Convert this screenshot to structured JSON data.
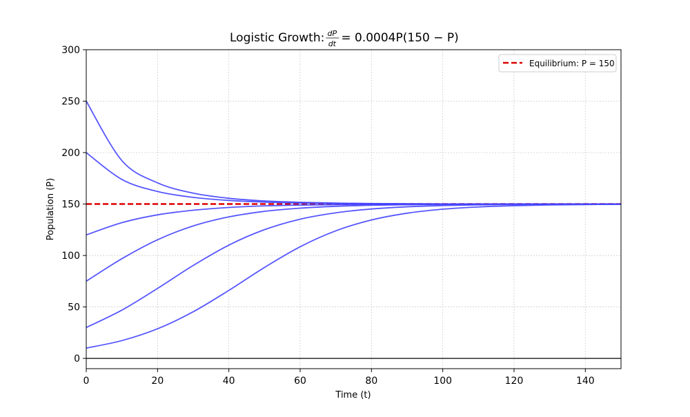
{
  "chart_data": {
    "type": "line",
    "title": "Logistic Growth: dP/dt = 0.0004P(150 − P)",
    "title_parts": {
      "prefix": "Logistic Growth: ",
      "num": "dP",
      "den": "dt",
      "suffix": " = 0.0004P(150 − P)"
    },
    "xlabel": "Time (t)",
    "ylabel": "Population (P)",
    "xlim": [
      0,
      150
    ],
    "ylim": [
      -10,
      300
    ],
    "xticks": [
      0,
      20,
      40,
      60,
      80,
      100,
      120,
      140
    ],
    "yticks": [
      0,
      50,
      100,
      150,
      200,
      250,
      300
    ],
    "grid": true,
    "legend_position": "top-right",
    "x": [
      0,
      10,
      20,
      30,
      40,
      50,
      60,
      70,
      80,
      90,
      100,
      110,
      120,
      130,
      140,
      150
    ],
    "series": [
      {
        "values": [
          10,
          17.3,
          28.8,
          45.3,
          66.1,
          88.4,
          108.5,
          124.0,
          134.5,
          141.1,
          145.0,
          147.2,
          148.4,
          149.1,
          149.5,
          149.7
        ]
      },
      {
        "values": [
          30,
          46.9,
          68.0,
          90.3,
          110.1,
          125.1,
          135.3,
          141.5,
          145.2,
          147.3,
          148.5,
          149.2,
          149.6,
          149.8,
          149.9,
          149.9
        ]
      },
      {
        "values": [
          75,
          96.9,
          115.3,
          128.7,
          137.5,
          142.9,
          146.0,
          147.8,
          148.8,
          149.3,
          149.6,
          149.8,
          149.9,
          150,
          150,
          150
        ]
      },
      {
        "values": [
          120,
          131.9,
          139.5,
          144.0,
          146.7,
          148.2,
          149.0,
          149.4,
          149.7,
          149.8,
          149.9,
          150,
          150,
          150,
          150,
          150
        ]
      },
      {
        "values": [
          200,
          173.9,
          162.2,
          156.5,
          153.5,
          151.9,
          151.0,
          150.6,
          150.3,
          150.2,
          150.1,
          150,
          150,
          150,
          150,
          150
        ]
      },
      {
        "values": [
          250,
          192.2,
          170.6,
          160.6,
          155.6,
          153.0,
          151.7,
          150.9,
          150.5,
          150.3,
          150.1,
          150.1,
          150,
          150,
          150,
          150
        ]
      }
    ],
    "series_color": "#4444ff",
    "reference_lines": [
      {
        "name": "Equilibrium: P = 150",
        "y": 150,
        "color": "#dd0000",
        "style": "dashed"
      },
      {
        "y": 0,
        "color": "#000000",
        "style": "solid"
      }
    ]
  }
}
